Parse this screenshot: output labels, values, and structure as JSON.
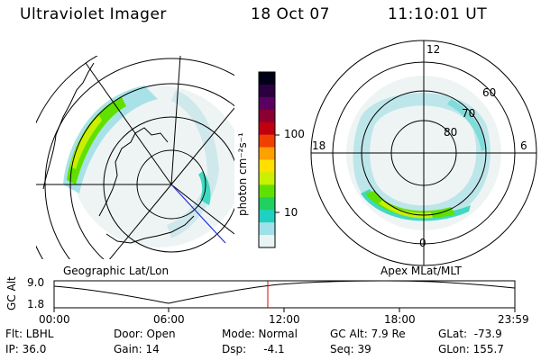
{
  "header": {
    "instrument": "Ultraviolet Imager",
    "date": "18 Oct 07",
    "time": "11:10:01 UT"
  },
  "colorbar": {
    "label": "photon cm⁻²s⁻¹",
    "ticks": [
      "100",
      "10"
    ],
    "colors": [
      "#000018",
      "#2a0040",
      "#5a0060",
      "#8a0030",
      "#c00010",
      "#f04000",
      "#ffa000",
      "#ffe000",
      "#c8f000",
      "#60e000",
      "#20d060",
      "#20d0c0",
      "#a0e0e8",
      "#e8f4f4"
    ]
  },
  "left_panel": {
    "caption": "Geographic Lat/Lon"
  },
  "right_panel": {
    "caption": "Apex MLat/MLT",
    "mlt_labels": {
      "top": "12",
      "left": "18",
      "right": "6",
      "bottom": "0"
    },
    "lat_labels": [
      "60",
      "70",
      "80"
    ]
  },
  "timeline": {
    "axis_label": "GC Alt",
    "y_ticks": [
      "9.0",
      "1.8"
    ],
    "x_ticks": [
      "00:00",
      "06:00",
      "12:00",
      "18:00",
      "23:59"
    ],
    "marker_color": "#e00000"
  },
  "status": {
    "flt": "Flt: LBHL",
    "ip": "IP: 36.0",
    "door": "Door: Open",
    "gain": "Gain: 14",
    "mode": "Mode: Normal",
    "dsp": "Dsp:     -4.1",
    "gc_alt": "GC Alt: 7.9 Re",
    "seq": "Seq: 39",
    "glat": "GLat:  -73.9",
    "glon": "GLon: 155.7"
  }
}
